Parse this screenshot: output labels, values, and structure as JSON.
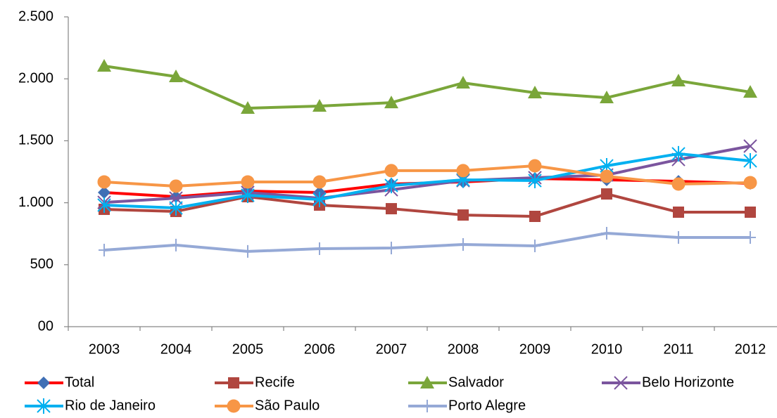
{
  "chart_data": {
    "type": "line",
    "categories": [
      "2003",
      "2004",
      "2005",
      "2006",
      "2007",
      "2008",
      "2009",
      "2010",
      "2011",
      "2012"
    ],
    "ylim": [
      0,
      2500
    ],
    "yticks": [
      {
        "value": 0,
        "label": "00"
      },
      500,
      {
        "value": 1000,
        "label": "1.000"
      },
      {
        "value": 1500,
        "label": "1.500"
      },
      {
        "value": 2000,
        "label": "2.000"
      },
      {
        "value": 2500,
        "label": "2.500"
      }
    ],
    "grid": false,
    "legend": "bottom",
    "series": [
      {
        "name": "Total",
        "color": "#ff0000",
        "marker": "diamond",
        "marker_color": "#3f6fb5",
        "values": [
          1083,
          1049,
          1094,
          1083,
          1151,
          1168,
          1196,
          1185,
          1173,
          1156
        ]
      },
      {
        "name": "Recife",
        "color": "#b0463f",
        "marker": "square",
        "values": [
          947,
          930,
          1049,
          981,
          952,
          901,
          890,
          1071,
          924,
          924
        ]
      },
      {
        "name": "Salvador",
        "color": "#7aa63a",
        "marker": "triangle",
        "values": [
          2103,
          2018,
          1763,
          1780,
          1808,
          1967,
          1888,
          1848,
          1984,
          1893
        ]
      },
      {
        "name": "Belo Horizonte",
        "color": "#7b559e",
        "marker": "x",
        "values": [
          1003,
          1037,
          1083,
          1037,
          1105,
          1179,
          1202,
          1224,
          1349,
          1457
        ]
      },
      {
        "name": "Rio de Janeiro",
        "color": "#00b0f0",
        "marker": "asterisk",
        "values": [
          981,
          958,
          1060,
          1026,
          1139,
          1185,
          1179,
          1298,
          1395,
          1338
        ]
      },
      {
        "name": "São Paulo",
        "color": "#f79646",
        "marker": "circle",
        "values": [
          1168,
          1134,
          1168,
          1168,
          1259,
          1259,
          1298,
          1213,
          1151,
          1162
        ]
      },
      {
        "name": "Porto Alegre",
        "color": "#95a9d6",
        "marker": "plus",
        "values": [
          618,
          658,
          607,
          629,
          635,
          663,
          652,
          754,
          720,
          720
        ]
      }
    ]
  }
}
